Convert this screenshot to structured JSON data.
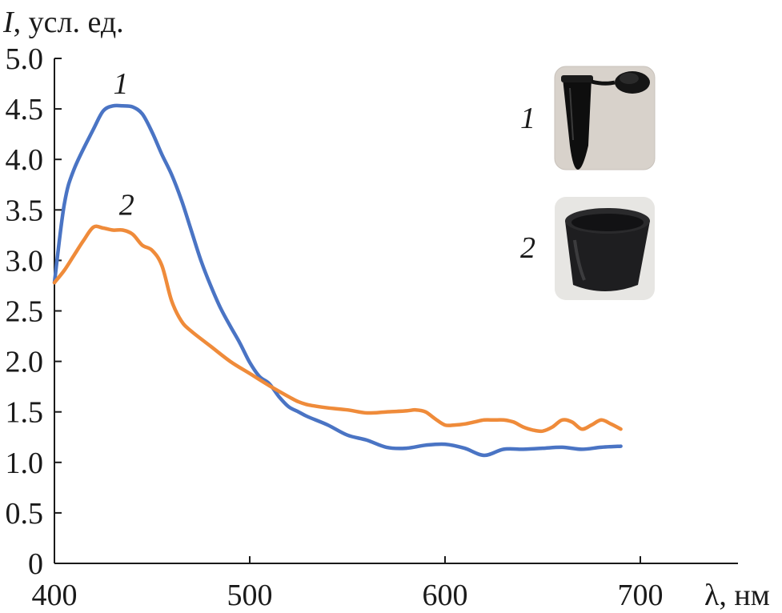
{
  "chart_data": {
    "type": "line",
    "title": "",
    "xlabel": "λ, нм",
    "ylabel_italic": "I",
    "ylabel_rest": ", усл. ед.",
    "xlim": [
      400,
      750
    ],
    "ylim": [
      0,
      5.0
    ],
    "x_ticks": [
      400,
      500,
      600,
      700
    ],
    "x_tick_labels": [
      "400",
      "500",
      "600",
      "700"
    ],
    "y_ticks": [
      0,
      0.5,
      1.0,
      1.5,
      2.0,
      2.5,
      3.0,
      3.5,
      4.0,
      4.5,
      5.0
    ],
    "y_tick_labels": [
      "0",
      "0.5",
      "1.0",
      "1.5",
      "2.0",
      "2.5",
      "3.0",
      "3.5",
      "4.0",
      "4.5",
      "5.0"
    ],
    "grid": false,
    "legend": "none",
    "series": [
      {
        "label": "1",
        "label_at": [
          434,
          4.65
        ],
        "color": "#4a74c4",
        "x": [
          400,
          405,
          410,
          420,
          425,
          430,
          435,
          440,
          445,
          450,
          455,
          460,
          465,
          470,
          475,
          480,
          485,
          490,
          495,
          500,
          505,
          510,
          515,
          520,
          525,
          530,
          540,
          550,
          560,
          570,
          580,
          590,
          600,
          610,
          620,
          630,
          640,
          650,
          660,
          670,
          680,
          690
        ],
        "y": [
          2.78,
          3.55,
          3.9,
          4.3,
          4.48,
          4.53,
          4.53,
          4.52,
          4.45,
          4.27,
          4.05,
          3.85,
          3.6,
          3.3,
          3.0,
          2.75,
          2.53,
          2.35,
          2.18,
          1.99,
          1.85,
          1.78,
          1.65,
          1.55,
          1.5,
          1.45,
          1.37,
          1.27,
          1.22,
          1.15,
          1.14,
          1.17,
          1.18,
          1.14,
          1.07,
          1.13,
          1.13,
          1.14,
          1.15,
          1.13,
          1.15,
          1.16
        ]
      },
      {
        "label": "2",
        "label_at": [
          437,
          3.45
        ],
        "color": "#ef8b3a",
        "x": [
          400,
          405,
          410,
          415,
          420,
          425,
          430,
          435,
          440,
          445,
          450,
          455,
          460,
          465,
          470,
          480,
          490,
          500,
          510,
          520,
          525,
          530,
          540,
          550,
          560,
          570,
          580,
          585,
          590,
          595,
          600,
          605,
          610,
          615,
          620,
          625,
          630,
          635,
          640,
          645,
          650,
          655,
          660,
          665,
          670,
          675,
          680,
          685,
          690
        ],
        "y": [
          2.78,
          2.9,
          3.05,
          3.2,
          3.33,
          3.32,
          3.3,
          3.3,
          3.26,
          3.15,
          3.1,
          2.95,
          2.6,
          2.4,
          2.3,
          2.15,
          2.0,
          1.88,
          1.76,
          1.65,
          1.6,
          1.57,
          1.54,
          1.52,
          1.49,
          1.5,
          1.51,
          1.52,
          1.5,
          1.43,
          1.37,
          1.37,
          1.38,
          1.4,
          1.42,
          1.42,
          1.42,
          1.4,
          1.35,
          1.32,
          1.31,
          1.35,
          1.42,
          1.4,
          1.33,
          1.37,
          1.42,
          1.38,
          1.33
        ]
      }
    ]
  },
  "inset": {
    "labels": [
      "1",
      "2"
    ],
    "photos": [
      "black-microtube-icon",
      "black-crucible-icon"
    ]
  }
}
